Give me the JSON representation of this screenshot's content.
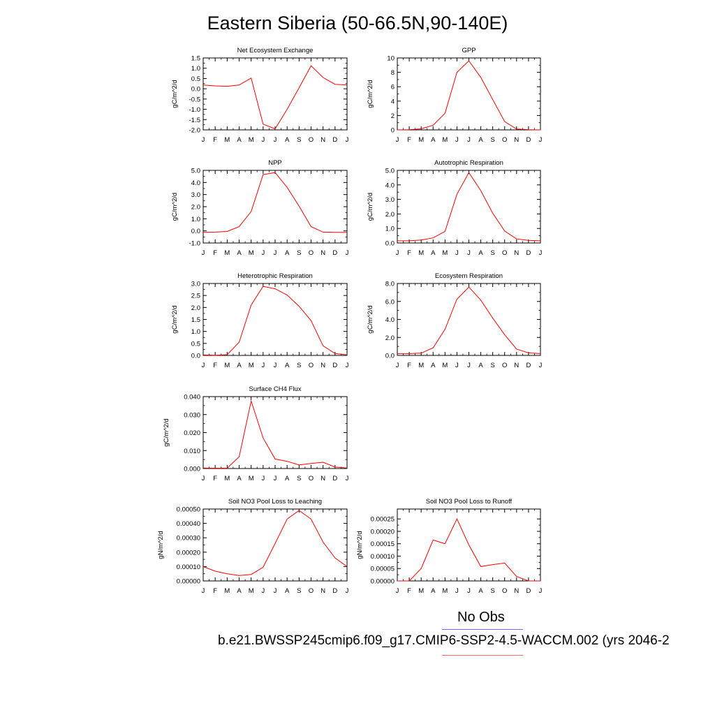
{
  "title": "Eastern Siberia (50-66.5N,90-140E)",
  "legend": {
    "obs_label": "No Obs",
    "obs_color": "#6b6bff",
    "case_label": "b.e21.BWSSP245cmip6.f09_g17.CMIP6-SSP2-4.5-WACCM.002 (yrs 2046-2",
    "case_color": "#ff6b6b"
  },
  "line_color": "#ff0000",
  "chart_data": [
    {
      "type": "line",
      "title": "Net Ecosystem Exchange",
      "ylabel": "gC/m^2/d",
      "categories": [
        "J",
        "F",
        "M",
        "A",
        "M",
        "J",
        "J",
        "A",
        "S",
        "O",
        "N",
        "D",
        "J"
      ],
      "values": [
        0.18,
        0.14,
        0.12,
        0.18,
        0.52,
        -1.72,
        -1.95,
        -1.0,
        0.05,
        1.12,
        0.55,
        0.22,
        0.18
      ],
      "ylim": [
        -2.0,
        1.5
      ],
      "yticks": [
        1.5,
        1.0,
        0.5,
        0.0,
        -0.5,
        -1.0,
        -1.5,
        -2.0
      ],
      "yticklabels": [
        "1.5",
        "1.0",
        "0.5",
        "0.0",
        "-0.5",
        "-1.0",
        "-1.5",
        "-2.0"
      ]
    },
    {
      "type": "line",
      "title": "GPP",
      "ylabel": "gC/m^2/d",
      "categories": [
        "J",
        "F",
        "M",
        "A",
        "M",
        "J",
        "J",
        "A",
        "S",
        "O",
        "N",
        "D",
        "J"
      ],
      "values": [
        0.0,
        0.02,
        0.15,
        0.65,
        2.3,
        8.0,
        9.6,
        7.3,
        4.2,
        1.15,
        0.12,
        0.02,
        0.0
      ],
      "ylim": [
        0,
        10
      ],
      "yticks": [
        10,
        8,
        6,
        4,
        2,
        0
      ],
      "yticklabels": [
        "10",
        "8",
        "6",
        "4",
        "2",
        "0"
      ]
    },
    {
      "type": "line",
      "title": "NPP",
      "ylabel": "gC/m^2/d",
      "categories": [
        "J",
        "F",
        "M",
        "A",
        "M",
        "J",
        "J",
        "A",
        "S",
        "O",
        "N",
        "D",
        "J"
      ],
      "values": [
        -0.12,
        -0.1,
        -0.05,
        0.35,
        1.6,
        4.65,
        4.82,
        3.6,
        2.05,
        0.35,
        -0.1,
        -0.12,
        -0.12
      ],
      "ylim": [
        -1.0,
        5.0
      ],
      "yticks": [
        5.0,
        4.0,
        3.0,
        2.0,
        1.0,
        0.0,
        -1.0
      ],
      "yticklabels": [
        "5.0",
        "4.0",
        "3.0",
        "2.0",
        "1.0",
        "0.0",
        "-1.0"
      ]
    },
    {
      "type": "line",
      "title": "Autotrophic Respiration",
      "ylabel": "gC/m^2/d",
      "categories": [
        "J",
        "F",
        "M",
        "A",
        "M",
        "J",
        "J",
        "A",
        "S",
        "O",
        "N",
        "D",
        "J"
      ],
      "values": [
        0.15,
        0.15,
        0.2,
        0.35,
        0.8,
        3.35,
        4.85,
        3.6,
        2.05,
        0.82,
        0.28,
        0.18,
        0.15
      ],
      "ylim": [
        0.0,
        5.0
      ],
      "yticks": [
        5.0,
        4.0,
        3.0,
        2.0,
        1.0,
        0.0
      ],
      "yticklabels": [
        "5.0",
        "4.0",
        "3.0",
        "2.0",
        "1.0",
        "0.0"
      ]
    },
    {
      "type": "line",
      "title": "Heterotrophic Respiration",
      "ylabel": "gC/m^2/d",
      "categories": [
        "J",
        "F",
        "M",
        "A",
        "M",
        "J",
        "J",
        "A",
        "S",
        "O",
        "N",
        "D",
        "J"
      ],
      "values": [
        0.02,
        0.01,
        0.03,
        0.55,
        2.1,
        2.88,
        2.78,
        2.52,
        2.05,
        1.45,
        0.4,
        0.08,
        0.02
      ],
      "ylim": [
        0.0,
        3.0
      ],
      "yticks": [
        3.0,
        2.5,
        2.0,
        1.5,
        1.0,
        0.5,
        0.0
      ],
      "yticklabels": [
        "3.0",
        "2.5",
        "2.0",
        "1.5",
        "1.0",
        "0.5",
        "0.0"
      ]
    },
    {
      "type": "line",
      "title": "Ecosystem Respiration",
      "ylabel": "gC/m^2/d",
      "categories": [
        "J",
        "F",
        "M",
        "A",
        "M",
        "J",
        "J",
        "A",
        "S",
        "O",
        "N",
        "D",
        "J"
      ],
      "values": [
        0.2,
        0.2,
        0.25,
        0.85,
        2.9,
        6.25,
        7.6,
        6.15,
        4.15,
        2.3,
        0.7,
        0.28,
        0.2
      ],
      "ylim": [
        0.0,
        8.0
      ],
      "yticks": [
        8.0,
        6.0,
        4.0,
        2.0,
        0.0
      ],
      "yticklabels": [
        "8.0",
        "6.0",
        "4.0",
        "2.0",
        "0.0"
      ]
    },
    {
      "type": "line",
      "title": "Surface CH4 Flux",
      "ylabel": "gC/m^2/d",
      "categories": [
        "J",
        "F",
        "M",
        "A",
        "M",
        "J",
        "J",
        "A",
        "S",
        "O",
        "N",
        "D",
        "J"
      ],
      "values": [
        0.0003,
        0.0002,
        0.0002,
        0.0065,
        0.0375,
        0.017,
        0.0053,
        0.004,
        0.002,
        0.0028,
        0.0035,
        0.0008,
        0.0003
      ],
      "ylim": [
        0.0,
        0.04
      ],
      "yticks": [
        0.04,
        0.03,
        0.02,
        0.01,
        0.0
      ],
      "yticklabels": [
        "0.040",
        "0.030",
        "0.020",
        "0.010",
        "0.000"
      ]
    },
    {
      "type": "line",
      "title": "Soil NO3 Pool Loss to Leaching",
      "ylabel": "gN/m^2/d",
      "categories": [
        "J",
        "F",
        "M",
        "A",
        "M",
        "J",
        "J",
        "A",
        "S",
        "O",
        "N",
        "D",
        "J"
      ],
      "values": [
        0.0001,
        6.8e-05,
        5e-05,
        3.8e-05,
        4.5e-05,
        9.5e-05,
        0.00026,
        0.00043,
        0.00049,
        0.00043,
        0.00027,
        0.00016,
        0.0001
      ],
      "ylim": [
        0.0,
        0.0005
      ],
      "yticks": [
        0.0005,
        0.0004,
        0.0003,
        0.0002,
        0.0001,
        0.0
      ],
      "yticklabels": [
        "0.00050",
        "0.00040",
        "0.00030",
        "0.00020",
        "0.00010",
        "0.00000"
      ]
    },
    {
      "type": "line",
      "title": "Soil NO3 Pool Loss to Runoff",
      "ylabel": "gN/m^2/d",
      "categories": [
        "J",
        "F",
        "M",
        "A",
        "M",
        "J",
        "J",
        "A",
        "S",
        "O",
        "N",
        "D",
        "J"
      ],
      "values": [
        0.0,
        0.0,
        5e-05,
        0.000165,
        0.00015,
        0.00025,
        0.000145,
        5.8e-05,
        6.6e-05,
        7.2e-05,
        1.8e-05,
        0.0,
        0.0
      ],
      "ylim": [
        0.0,
        0.00029
      ],
      "yticks": [
        0.00025,
        0.0002,
        0.00015,
        0.0001,
        5e-05,
        0.0
      ],
      "yticklabels": [
        "0.00025",
        "0.00020",
        "0.00015",
        "0.00010",
        "0.00005",
        "0.00000"
      ]
    }
  ]
}
